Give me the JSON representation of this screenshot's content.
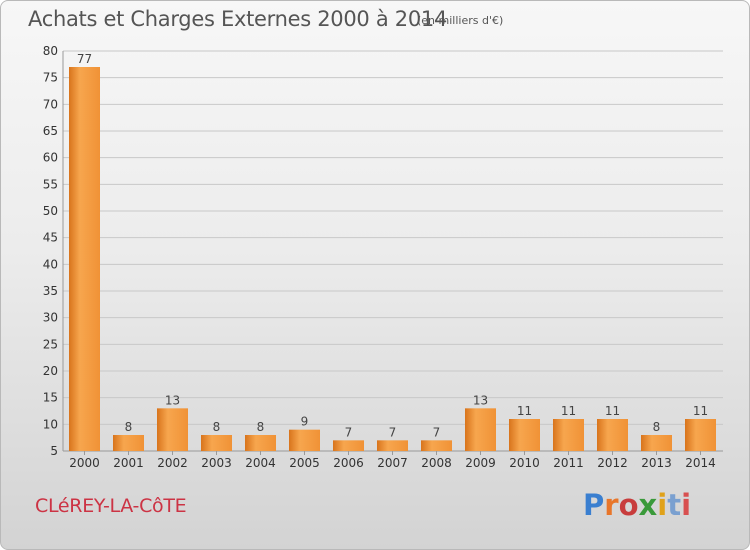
{
  "header": {
    "title": "Achats et Charges Externes 2000 à 2014",
    "unit": "(en milliers d'€)"
  },
  "footer": {
    "commune": "CLéREY-LA-CôTE",
    "logo": "Proxiti"
  },
  "colors": {
    "bar_light": "#f7a64e",
    "bar_dark": "#d8741c",
    "grid": "#c8c8c8",
    "title": "#555555",
    "commune": "#cc3344",
    "logo_letters": [
      "#3a7fd0",
      "#e8762a",
      "#c83c3c",
      "#3a9a3a",
      "#e0a21a",
      "#7aa0d0",
      "#d85050"
    ]
  },
  "chart_data": {
    "type": "bar",
    "title": "Achats et Charges Externes 2000 à 2014",
    "subtitle": "(en milliers d'€)",
    "xlabel": "",
    "ylabel": "",
    "ylim": [
      5,
      80
    ],
    "yticks": [
      5,
      10,
      15,
      20,
      25,
      30,
      35,
      40,
      45,
      50,
      55,
      60,
      65,
      70,
      75,
      80
    ],
    "grid": true,
    "categories": [
      "2000",
      "2001",
      "2002",
      "2003",
      "2004",
      "2005",
      "2006",
      "2007",
      "2008",
      "2009",
      "2010",
      "2011",
      "2012",
      "2013",
      "2014"
    ],
    "values": [
      77,
      8,
      13,
      8,
      8,
      9,
      7,
      7,
      7,
      13,
      11,
      11,
      11,
      8,
      11
    ],
    "data_labels": [
      "77",
      "8",
      "13",
      "8",
      "8",
      "9",
      "7",
      "7",
      "7",
      "13",
      "11",
      "11",
      "11",
      "8",
      "11"
    ]
  }
}
